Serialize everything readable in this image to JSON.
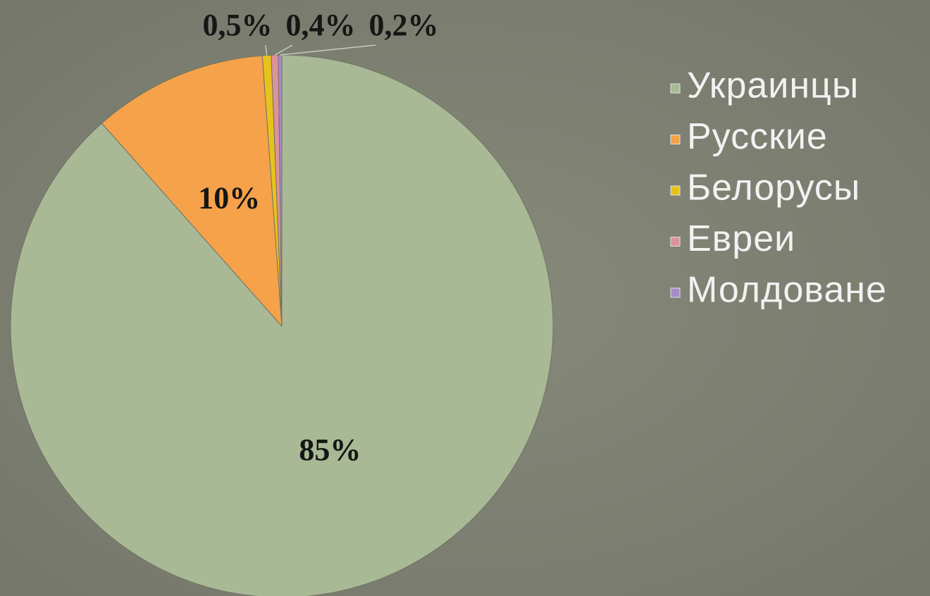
{
  "chart_data": {
    "type": "pie",
    "categories": [
      "Украинцы",
      "Русские",
      "Белорусы",
      "Евреи",
      "Молдоване"
    ],
    "values": [
      85,
      10,
      0.5,
      0.4,
      0.2
    ],
    "value_labels": [
      "85%",
      "10%",
      "0,5%",
      "0,4%",
      "0,2%"
    ],
    "colors": [
      "#a9b996",
      "#f5a24a",
      "#e8c21c",
      "#dc929c",
      "#a98ac8"
    ],
    "legend": "right"
  }
}
